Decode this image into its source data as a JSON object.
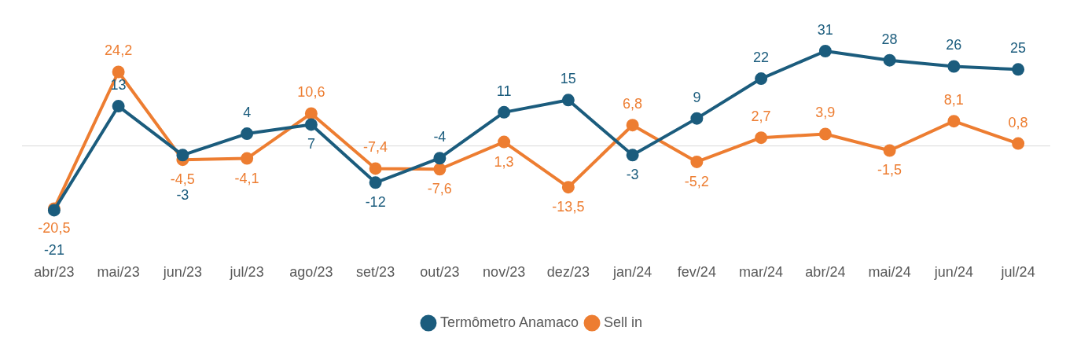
{
  "chart_data": {
    "type": "line",
    "categories": [
      "abr/23",
      "mai/23",
      "jun/23",
      "jul/23",
      "ago/23",
      "set/23",
      "out/23",
      "nov/23",
      "dez/23",
      "jan/24",
      "fev/24",
      "mar/24",
      "abr/24",
      "mai/24",
      "jun/24",
      "jul/24"
    ],
    "series": [
      {
        "name": "Termômetro Anamaco",
        "color": "#1b5c7d",
        "values": [
          -21,
          13,
          -3,
          4,
          7,
          -12,
          -4,
          11,
          15,
          -3,
          9,
          22,
          31,
          28,
          26,
          25
        ],
        "value_labels": [
          "-21",
          "13",
          "-3",
          "4",
          "7",
          "-12",
          "-4",
          "11",
          "15",
          "-3",
          "9",
          "22",
          "31",
          "28",
          "26",
          "25"
        ]
      },
      {
        "name": "Sell in",
        "color": "#ed7d31",
        "values": [
          -20.5,
          24.2,
          -4.5,
          -4.1,
          10.6,
          -7.4,
          -7.6,
          1.3,
          -13.5,
          6.8,
          -5.2,
          2.7,
          3.9,
          -1.5,
          8.1,
          0.8
        ],
        "value_labels": [
          "-20,5",
          "24,2",
          "-4,5",
          "-4,1",
          "10,6",
          "-7,4",
          "-7,6",
          "1,3",
          "-13,5",
          "6,8",
          "-5,2",
          "2,7",
          "3,9",
          "-1,5",
          "8,1",
          "0,8"
        ]
      }
    ],
    "relative": false,
    "data_labels": true,
    "legend": "bottom",
    "grid": false,
    "marker": "circle",
    "line_style": "solid"
  }
}
